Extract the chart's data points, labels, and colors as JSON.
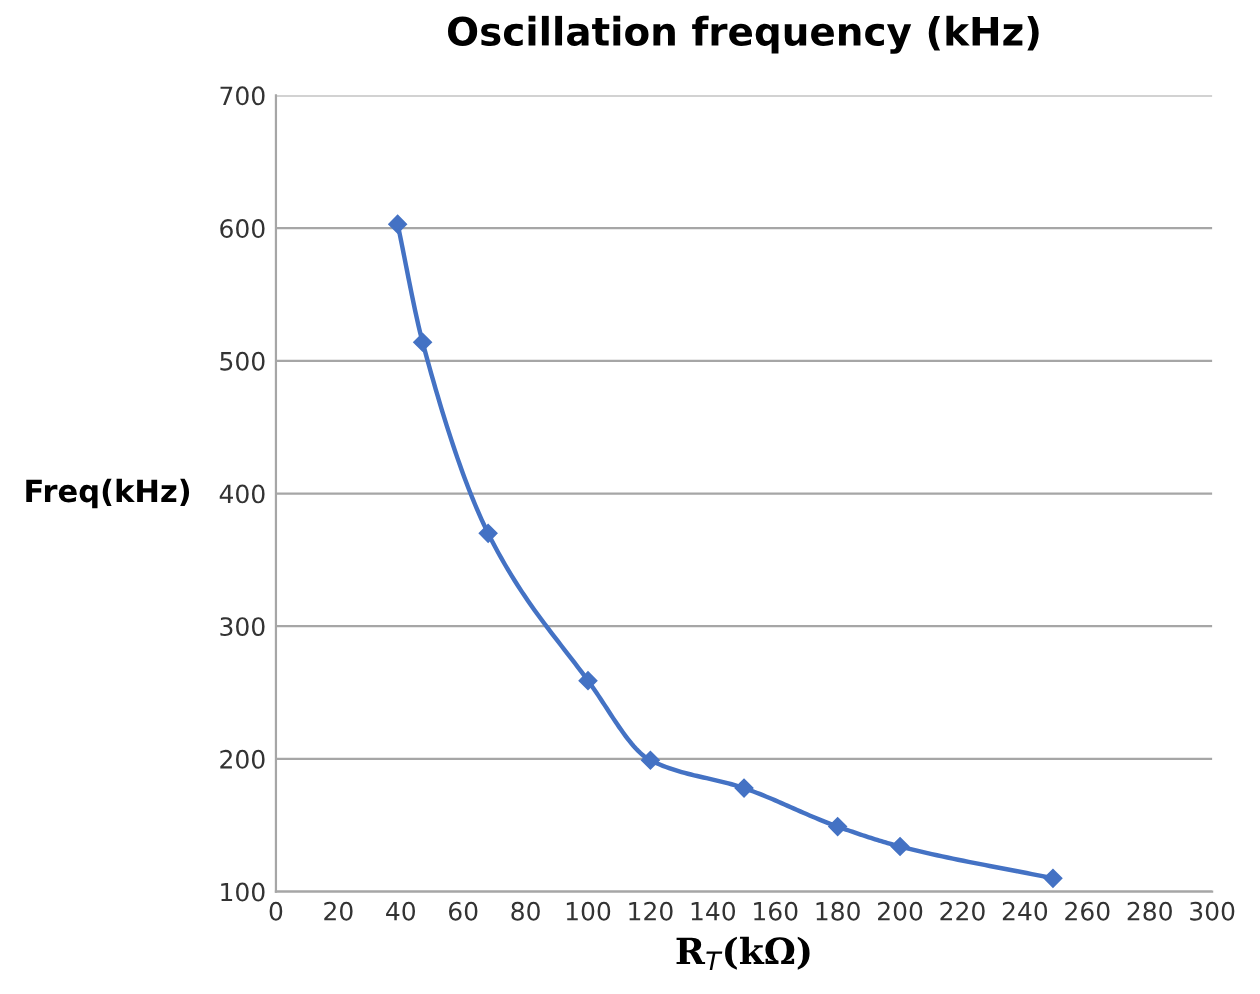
{
  "chart_data": {
    "type": "line",
    "title": "Oscillation frequency (kHz)",
    "xlabel": "R$_{T}$(kΩ)",
    "ylabel": "Freq(kHz)",
    "x": [
      39,
      47,
      68,
      100,
      120,
      150,
      180,
      200,
      249
    ],
    "series": [
      {
        "color": "#4472c4",
        "values": [
          603,
          514,
          370,
          259,
          199,
          178,
          149,
          134,
          110
        ]
      }
    ],
    "xlim": [
      0,
      300
    ],
    "xticks": [
      0,
      20,
      40,
      60,
      80,
      100,
      120,
      140,
      160,
      180,
      200,
      220,
      240,
      260,
      280,
      300
    ],
    "ylim": [
      100,
      700
    ],
    "yticks": [
      100,
      200,
      300,
      400,
      500,
      600,
      700
    ],
    "grid": "y",
    "marker": "diamond",
    "line_style": "solid"
  }
}
